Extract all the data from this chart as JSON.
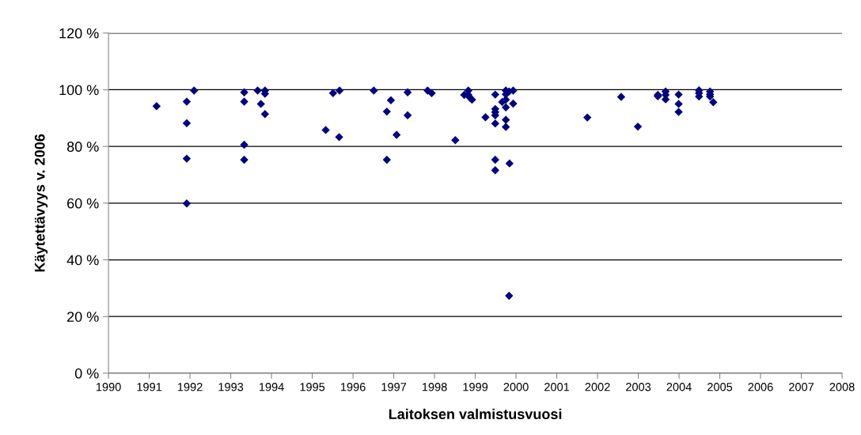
{
  "chart_data": {
    "type": "scatter",
    "xlabel": "Laitoksen valmistusvuosi",
    "ylabel": "Käytettävyys v. 2006",
    "series": [
      {
        "color": "#000080",
        "x": [
          1991.18,
          1991.92,
          1991.92,
          1991.92,
          1991.92,
          1992.1,
          1993.33,
          1993.33,
          1993.33,
          1993.33,
          1993.66,
          1993.84,
          1993.84,
          1993.74,
          1993.84,
          1995.33,
          1995.66,
          1995.51,
          1995.67,
          1996.51,
          1996.93,
          1996.83,
          1997.07,
          1996.83,
          1997.34,
          1997.34,
          1997.83,
          1997.93,
          1998.51,
          1998.73,
          1998.83,
          1998.87,
          1998.92,
          1998.83,
          1999.25,
          1999.49,
          1999.49,
          1999.49,
          1999.49,
          1999.49,
          1999.49,
          1999.49,
          1999.75,
          1999.83,
          1999.93,
          1999.75,
          1999.75,
          1999.66,
          1999.75,
          1999.93,
          1999.75,
          1999.75,
          1999.84,
          1999.83,
          2001.75,
          2002.58,
          2002.99,
          2003.48,
          2003.48,
          2003.67,
          2003.67,
          2003.67,
          2003.99,
          2003.99,
          2003.99,
          2004.49,
          2004.49,
          2004.49,
          2004.76,
          2004.76,
          2004.76,
          2004.84
        ],
        "values": [
          94.2,
          95.8,
          88.2,
          75.7,
          59.9,
          99.7,
          99.1,
          95.8,
          80.6,
          75.3,
          99.7,
          99.7,
          98.6,
          95.0,
          91.4,
          85.8,
          83.3,
          98.8,
          99.7,
          99.7,
          96.3,
          92.3,
          84.1,
          75.3,
          99.1,
          91.0,
          99.7,
          98.8,
          82.2,
          98.2,
          99.7,
          97.2,
          96.5,
          98.2,
          90.3,
          98.3,
          93.2,
          92.1,
          91.0,
          88.1,
          75.3,
          71.6,
          99.7,
          99.4,
          99.7,
          98.4,
          96.5,
          95.7,
          93.8,
          95.1,
          89.4,
          86.9,
          74.0,
          27.3,
          90.2,
          97.5,
          87.0,
          97.7,
          98.2,
          99.4,
          98.2,
          96.6,
          98.3,
          95.0,
          92.2,
          99.8,
          98.8,
          97.6,
          99.4,
          98.4,
          97.6,
          95.6
        ]
      }
    ],
    "marker": "diamond",
    "xlim": [
      1990,
      2008
    ],
    "xticks": [
      1990,
      1991,
      1992,
      1993,
      1994,
      1995,
      1996,
      1997,
      1998,
      1999,
      2000,
      2001,
      2002,
      2003,
      2004,
      2005,
      2006,
      2007,
      2008
    ],
    "ylim": [
      0,
      120
    ],
    "yticks": [
      {
        "value": 0,
        "label": "0 %"
      },
      {
        "value": 20,
        "label": "20 %"
      },
      {
        "value": 40,
        "label": "40 %"
      },
      {
        "value": 60,
        "label": "60 %"
      },
      {
        "value": 80,
        "label": "80 %"
      },
      {
        "value": 100,
        "label": "100 %"
      },
      {
        "value": 120,
        "label": "120 %"
      }
    ],
    "grid": "y"
  }
}
